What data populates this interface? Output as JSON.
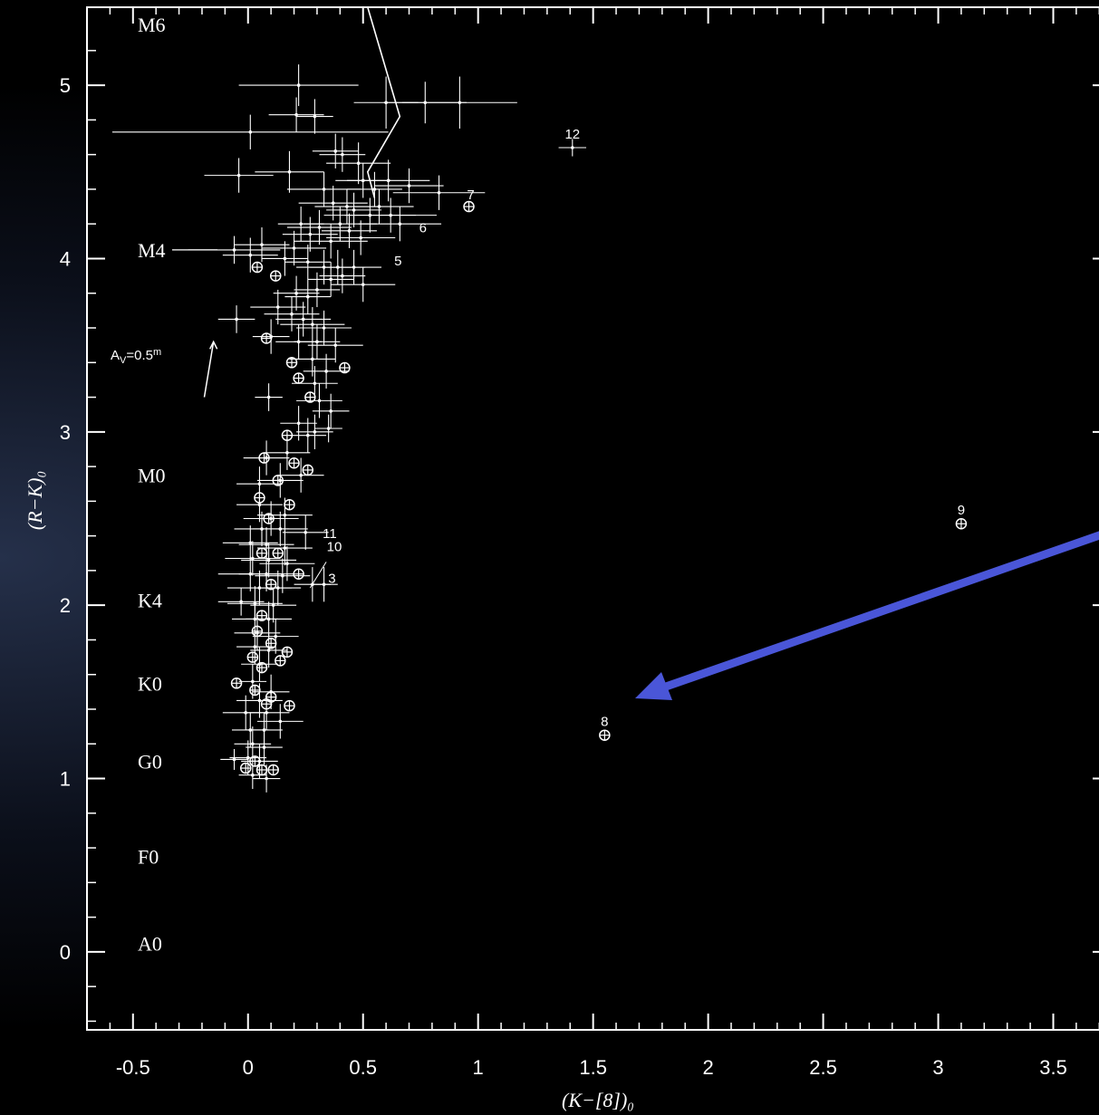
{
  "chart_data": {
    "type": "scatter",
    "xlabel": "(K−[8])₀",
    "ylabel": "(R−K)₀",
    "xlim": [
      -0.7,
      3.75
    ],
    "ylim": [
      -0.45,
      5.45
    ],
    "x_ticks": [
      "-0.5",
      "0",
      "0.5",
      "1",
      "1.5",
      "2",
      "2.5",
      "3",
      "3.5"
    ],
    "x_tick_values": [
      -0.5,
      0,
      0.5,
      1,
      1.5,
      2,
      2.5,
      3,
      3.5
    ],
    "y_ticks": [
      "0",
      "1",
      "2",
      "3",
      "4",
      "5"
    ],
    "y_tick_values": [
      0,
      1,
      2,
      3,
      4,
      5
    ],
    "spectral_types": [
      {
        "label": "M6",
        "y": 5.35
      },
      {
        "label": "M4",
        "y": 4.05
      },
      {
        "label": "M0",
        "y": 2.75
      },
      {
        "label": "K4",
        "y": 2.03
      },
      {
        "label": "K0",
        "y": 1.55
      },
      {
        "label": "G0",
        "y": 1.1
      },
      {
        "label": "F0",
        "y": 0.55
      },
      {
        "label": "A0",
        "y": 0.05
      }
    ],
    "reddening_vector": {
      "label_prefix": "A",
      "label_sub": "V",
      "label_value": "=0.5",
      "label_sup": "m",
      "x0": -0.19,
      "y0": 3.2,
      "x1": -0.15,
      "y1": 3.52
    },
    "model_line": {
      "x": [
        0.52,
        0.66,
        0.52,
        0.55
      ],
      "y": [
        5.45,
        4.82,
        4.5,
        4.35
      ]
    },
    "numbered_sources": [
      {
        "label": "12",
        "x": 1.41,
        "y": 4.64
      },
      {
        "label": "7",
        "x": 0.96,
        "y": 4.3
      },
      {
        "label": "6",
        "x": 0.76,
        "y": 4.1
      },
      {
        "label": "5",
        "x": 0.66,
        "y": 3.94
      },
      {
        "label": "11",
        "x": 0.3,
        "y": 2.43
      },
      {
        "label": "10",
        "x": 0.32,
        "y": 2.27
      },
      {
        "label": "3",
        "x": 0.31,
        "y": 2.13
      },
      {
        "label": "9",
        "x": 3.1,
        "y": 2.47
      },
      {
        "label": "8",
        "x": 1.55,
        "y": 1.25
      }
    ],
    "crosses": [
      [
        0.22,
        5.0,
        0.26,
        0.12
      ],
      [
        0.21,
        4.83,
        0.12,
        0.1
      ],
      [
        0.29,
        4.82,
        0.08,
        0.1
      ],
      [
        0.01,
        4.73,
        0.6,
        0.1
      ],
      [
        0.6,
        4.9,
        0.14,
        0.15
      ],
      [
        0.77,
        4.9,
        0.18,
        0.12
      ],
      [
        0.92,
        4.9,
        0.25,
        0.15
      ],
      [
        -0.04,
        4.48,
        0.15,
        0.1
      ],
      [
        0.18,
        4.5,
        0.15,
        0.12
      ],
      [
        0.38,
        4.62,
        0.1,
        0.1
      ],
      [
        0.41,
        4.6,
        0.1,
        0.1
      ],
      [
        0.48,
        4.55,
        0.14,
        0.12
      ],
      [
        0.5,
        4.45,
        0.12,
        0.1
      ],
      [
        0.55,
        4.4,
        0.12,
        0.1
      ],
      [
        0.61,
        4.45,
        0.18,
        0.12
      ],
      [
        0.7,
        4.42,
        0.15,
        0.1
      ],
      [
        0.83,
        4.38,
        0.2,
        0.1
      ],
      [
        0.33,
        4.4,
        0.16,
        0.1
      ],
      [
        0.37,
        4.32,
        0.15,
        0.1
      ],
      [
        0.43,
        4.3,
        0.14,
        0.1
      ],
      [
        0.46,
        4.28,
        0.12,
        0.1
      ],
      [
        0.53,
        4.25,
        0.2,
        0.1
      ],
      [
        0.57,
        4.3,
        0.15,
        0.1
      ],
      [
        0.62,
        4.25,
        0.2,
        0.1
      ],
      [
        0.66,
        4.2,
        0.18,
        0.1
      ],
      [
        0.4,
        4.2,
        0.16,
        0.1
      ],
      [
        0.44,
        4.16,
        0.12,
        0.1
      ],
      [
        0.49,
        4.12,
        0.15,
        0.1
      ],
      [
        0.36,
        4.1,
        0.16,
        0.1
      ],
      [
        0.31,
        4.18,
        0.14,
        0.1
      ],
      [
        0.27,
        4.14,
        0.12,
        0.1
      ],
      [
        0.23,
        4.2,
        0.1,
        0.1
      ],
      [
        0.2,
        4.06,
        0.14,
        0.1
      ],
      [
        -0.06,
        4.05,
        0.2,
        0.08
      ],
      [
        0.01,
        4.02,
        0.12,
        0.1
      ],
      [
        0.06,
        4.08,
        0.12,
        0.1
      ],
      [
        0.16,
        4.0,
        0.1,
        0.1
      ],
      [
        0.26,
        3.98,
        0.1,
        0.1
      ],
      [
        0.33,
        3.95,
        0.12,
        0.1
      ],
      [
        0.39,
        3.95,
        0.12,
        0.1
      ],
      [
        0.41,
        3.9,
        0.1,
        0.1
      ],
      [
        0.46,
        3.95,
        0.12,
        0.1
      ],
      [
        0.5,
        3.85,
        0.14,
        0.1
      ],
      [
        0.36,
        3.88,
        0.1,
        0.1
      ],
      [
        0.3,
        3.82,
        0.1,
        0.1
      ],
      [
        0.26,
        3.78,
        0.1,
        0.1
      ],
      [
        0.21,
        3.8,
        0.1,
        0.1
      ],
      [
        0.13,
        3.72,
        0.12,
        0.1
      ],
      [
        0.19,
        3.68,
        0.12,
        0.1
      ],
      [
        0.24,
        3.65,
        0.12,
        0.1
      ],
      [
        0.28,
        3.62,
        0.14,
        0.1
      ],
      [
        0.33,
        3.6,
        0.12,
        0.1
      ],
      [
        -0.05,
        3.65,
        0.08,
        0.08
      ],
      [
        0.1,
        3.55,
        0.08,
        0.1
      ],
      [
        0.22,
        3.52,
        0.1,
        0.1
      ],
      [
        0.3,
        3.52,
        0.1,
        0.1
      ],
      [
        0.38,
        3.5,
        0.12,
        0.1
      ],
      [
        0.28,
        3.42,
        0.1,
        0.1
      ],
      [
        0.34,
        3.35,
        0.1,
        0.1
      ],
      [
        0.29,
        3.28,
        0.1,
        0.1
      ],
      [
        0.31,
        3.18,
        0.1,
        0.1
      ],
      [
        0.36,
        3.12,
        0.08,
        0.1
      ],
      [
        0.09,
        3.2,
        0.06,
        0.08
      ],
      [
        0.22,
        3.05,
        0.08,
        0.1
      ],
      [
        0.29,
        3.0,
        0.08,
        0.1
      ],
      [
        0.35,
        3.02,
        0.06,
        0.08
      ],
      [
        0.26,
        2.98,
        0.08,
        0.1
      ],
      [
        0.17,
        2.88,
        0.1,
        0.1
      ],
      [
        0.08,
        2.85,
        0.1,
        0.1
      ],
      [
        0.23,
        2.75,
        0.1,
        0.1
      ],
      [
        0.14,
        2.72,
        0.1,
        0.1
      ],
      [
        0.05,
        2.7,
        0.1,
        0.1
      ],
      [
        0.05,
        2.58,
        0.1,
        0.1
      ],
      [
        0.1,
        2.5,
        0.12,
        0.1
      ],
      [
        0.16,
        2.52,
        0.12,
        0.1
      ],
      [
        0.06,
        2.44,
        0.12,
        0.1
      ],
      [
        0.14,
        2.44,
        0.12,
        0.1
      ],
      [
        0.25,
        2.42,
        0.1,
        0.1
      ],
      [
        0.01,
        2.36,
        0.12,
        0.1
      ],
      [
        0.08,
        2.35,
        0.12,
        0.1
      ],
      [
        0.16,
        2.33,
        0.12,
        0.1
      ],
      [
        0.02,
        2.27,
        0.12,
        0.1
      ],
      [
        0.09,
        2.26,
        0.12,
        0.1
      ],
      [
        0.17,
        2.24,
        0.12,
        0.1
      ],
      [
        0.01,
        2.18,
        0.14,
        0.1
      ],
      [
        0.08,
        2.18,
        0.12,
        0.1
      ],
      [
        0.15,
        2.17,
        0.12,
        0.1
      ],
      [
        0.05,
        2.1,
        0.14,
        0.1
      ],
      [
        0.13,
        2.1,
        0.1,
        0.1
      ],
      [
        0.28,
        2.12,
        0.08,
        0.1
      ],
      [
        0.33,
        2.12,
        0.06,
        0.1
      ],
      [
        -0.03,
        2.02,
        0.1,
        0.08
      ],
      [
        0.03,
        2.01,
        0.12,
        0.1
      ],
      [
        0.11,
        2.0,
        0.1,
        0.1
      ],
      [
        0.03,
        1.92,
        0.1,
        0.1
      ],
      [
        0.09,
        1.92,
        0.1,
        0.1
      ],
      [
        0.04,
        1.84,
        0.1,
        0.1
      ],
      [
        0.12,
        1.82,
        0.1,
        0.1
      ],
      [
        0.03,
        1.76,
        0.08,
        0.1
      ],
      [
        0.09,
        1.74,
        0.08,
        0.1
      ],
      [
        0.05,
        1.66,
        0.08,
        0.1
      ],
      [
        0.02,
        1.56,
        0.06,
        0.1
      ],
      [
        0.1,
        1.5,
        0.08,
        0.1
      ],
      [
        0.05,
        1.45,
        0.1,
        0.1
      ],
      [
        -0.01,
        1.38,
        0.1,
        0.1
      ],
      [
        0.08,
        1.38,
        0.1,
        0.1
      ],
      [
        0.14,
        1.33,
        0.1,
        0.1
      ],
      [
        0.01,
        1.28,
        0.08,
        0.1
      ],
      [
        0.07,
        1.28,
        0.08,
        0.1
      ],
      [
        0.02,
        1.2,
        0.08,
        0.1
      ],
      [
        0.07,
        1.18,
        0.08,
        0.1
      ],
      [
        -0.06,
        1.11,
        0.06,
        0.06
      ],
      [
        0.0,
        1.12,
        0.08,
        0.1
      ],
      [
        0.05,
        1.1,
        0.08,
        0.1
      ],
      [
        0.02,
        1.02,
        0.06,
        0.08
      ],
      [
        0.08,
        1.0,
        0.06,
        0.08
      ],
      [
        1.41,
        4.64,
        0.06,
        0.05
      ]
    ],
    "circled_points": [
      [
        0.96,
        4.3
      ],
      [
        0.04,
        3.95
      ],
      [
        0.12,
        3.9
      ],
      [
        0.08,
        3.54
      ],
      [
        0.42,
        3.37
      ],
      [
        0.19,
        3.4
      ],
      [
        0.22,
        3.31
      ],
      [
        0.27,
        3.2
      ],
      [
        0.17,
        2.98
      ],
      [
        0.07,
        2.85
      ],
      [
        0.26,
        2.78
      ],
      [
        0.2,
        2.82
      ],
      [
        0.13,
        2.72
      ],
      [
        0.05,
        2.62
      ],
      [
        0.18,
        2.58
      ],
      [
        0.09,
        2.5
      ],
      [
        0.06,
        2.3
      ],
      [
        0.13,
        2.3
      ],
      [
        0.22,
        2.18
      ],
      [
        0.1,
        2.12
      ],
      [
        0.06,
        1.94
      ],
      [
        0.04,
        1.85
      ],
      [
        0.1,
        1.78
      ],
      [
        0.17,
        1.73
      ],
      [
        0.14,
        1.68
      ],
      [
        0.02,
        1.7
      ],
      [
        0.06,
        1.64
      ],
      [
        -0.05,
        1.55
      ],
      [
        0.03,
        1.51
      ],
      [
        0.1,
        1.47
      ],
      [
        0.18,
        1.42
      ],
      [
        0.08,
        1.43
      ],
      [
        -0.01,
        1.06
      ],
      [
        0.06,
        1.05
      ],
      [
        0.11,
        1.05
      ],
      [
        0.03,
        1.1
      ],
      [
        3.1,
        2.47
      ],
      [
        1.55,
        1.25
      ]
    ],
    "annotation_arrow": {
      "color": "#4a56d8"
    }
  }
}
